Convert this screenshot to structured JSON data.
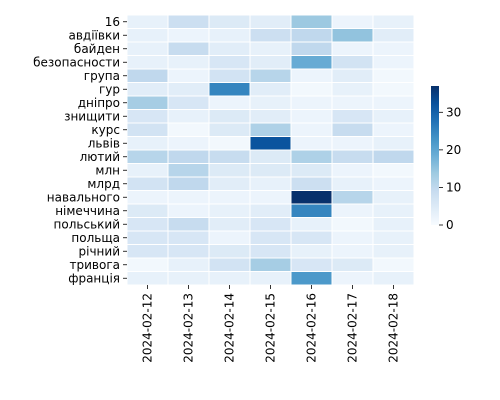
{
  "chart_data": {
    "type": "heatmap",
    "title": "",
    "xlabel": "",
    "ylabel": "",
    "x": [
      "2024-02-12",
      "2024-02-13",
      "2024-02-14",
      "2024-02-15",
      "2024-02-16",
      "2024-02-17",
      "2024-02-18"
    ],
    "y": [
      "16",
      "авдіївки",
      "байден",
      "безопасности",
      "група",
      "гур",
      "дніпро",
      "знищити",
      "курс",
      "львів",
      "лютий",
      "млн",
      "млрд",
      "навального",
      "німеччина",
      "польський",
      "польща",
      "річний",
      "тривога",
      "франція"
    ],
    "values": [
      [
        3,
        8,
        5,
        4,
        14,
        2,
        3
      ],
      [
        3,
        2,
        3,
        8,
        10,
        15,
        4
      ],
      [
        3,
        9,
        4,
        3,
        10,
        2,
        2
      ],
      [
        3,
        3,
        6,
        4,
        19,
        7,
        2
      ],
      [
        10,
        2,
        7,
        11,
        2,
        4,
        1
      ],
      [
        4,
        4,
        25,
        4,
        1,
        3,
        1
      ],
      [
        13,
        6,
        2,
        3,
        2,
        2,
        2
      ],
      [
        6,
        3,
        5,
        4,
        2,
        6,
        3
      ],
      [
        7,
        1,
        5,
        12,
        2,
        9,
        2
      ],
      [
        3,
        2,
        1,
        32,
        2,
        2,
        3
      ],
      [
        11,
        10,
        9,
        5,
        12,
        9,
        10
      ],
      [
        3,
        11,
        5,
        5,
        5,
        2,
        1
      ],
      [
        7,
        10,
        4,
        3,
        8,
        3,
        2
      ],
      [
        2,
        2,
        2,
        2,
        37,
        11,
        3
      ],
      [
        5,
        2,
        3,
        4,
        25,
        2,
        3
      ],
      [
        6,
        9,
        4,
        6,
        3,
        1,
        3
      ],
      [
        6,
        6,
        2,
        6,
        6,
        2,
        3
      ],
      [
        6,
        6,
        5,
        6,
        3,
        2,
        3
      ],
      [
        1,
        3,
        7,
        13,
        6,
        5,
        1
      ],
      [
        3,
        3,
        3,
        3,
        22,
        2,
        3
      ]
    ],
    "vmin": 0,
    "vmax": 37,
    "colorbar_ticks": [
      0,
      10,
      20,
      30
    ],
    "colormap": "Blues",
    "cell_border_color": "#ffffff"
  }
}
